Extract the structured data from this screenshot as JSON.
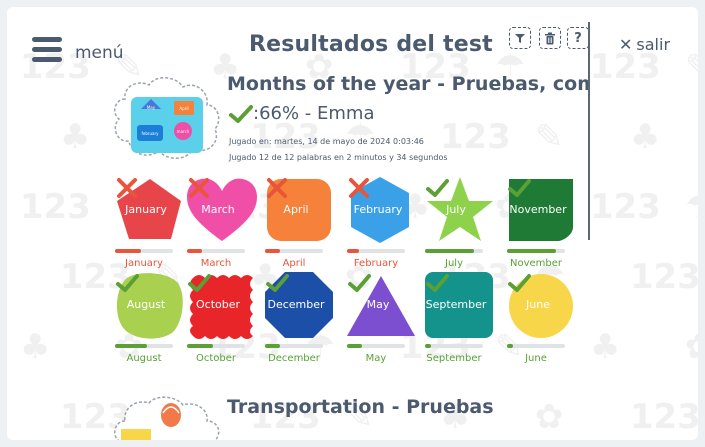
{
  "header": {
    "menu_label": "menú",
    "title": "Resultados del test",
    "tools": [
      {
        "icon": "filter-icon",
        "glyph": "▼"
      },
      {
        "icon": "trash-icon",
        "glyph": "🗑"
      },
      {
        "icon": "help-icon",
        "glyph": "?"
      }
    ],
    "close_label": "salir"
  },
  "test": {
    "title": "Months of the year - Pruebas, comprensió",
    "score_text": ":66% - Emma",
    "played_on": "Jugado en: martes, 14 de mayo de 2024 0:03:46",
    "played_stats": "Jugado 12 de 12 palabras en 2 minutos y 34 segundos"
  },
  "words": [
    {
      "word": "January",
      "label": "January",
      "correct": false,
      "shape": "pentagon",
      "color": "#e8454a",
      "progress": 0.45
    },
    {
      "word": "March",
      "label": "March",
      "correct": false,
      "shape": "heart",
      "color": "#f04fa8",
      "progress": 0.25
    },
    {
      "word": "April",
      "label": "April",
      "correct": false,
      "shape": "rounded",
      "color": "#f5813a",
      "progress": 0.25
    },
    {
      "word": "February",
      "label": "February",
      "correct": false,
      "shape": "hexagon",
      "color": "#3aa0e8",
      "progress": 0.2
    },
    {
      "word": "July",
      "label": "July",
      "correct": true,
      "shape": "star",
      "color": "#8ed24b",
      "progress": 0.85
    },
    {
      "word": "November",
      "label": "November",
      "correct": true,
      "shape": "shield",
      "color": "#1f7a35",
      "progress": 0.85
    },
    {
      "word": "August",
      "label": "August",
      "correct": true,
      "shape": "blob",
      "color": "#a9d04e",
      "progress": 0.55
    },
    {
      "word": "October",
      "label": "October",
      "correct": true,
      "shape": "wavy",
      "color": "#e8262a",
      "progress": 0.45
    },
    {
      "word": "December",
      "label": "December",
      "correct": true,
      "shape": "octagon",
      "color": "#1b4fa8",
      "progress": 0.25
    },
    {
      "word": "May",
      "label": "May",
      "correct": true,
      "shape": "triangle",
      "color": "#7b4fd0",
      "progress": 0.25
    },
    {
      "word": "September",
      "label": "September",
      "correct": true,
      "shape": "roundsq",
      "color": "#14928c",
      "progress": 0.1
    },
    {
      "word": "June",
      "label": "June",
      "correct": true,
      "shape": "circle",
      "color": "#f8d64a",
      "progress": 0.1
    }
  ],
  "colors": {
    "correct": "#5aa035",
    "wrong": "#e8553a",
    "text": "#4b5a6e"
  },
  "next_test": {
    "title": "Transportation - Pruebas"
  }
}
